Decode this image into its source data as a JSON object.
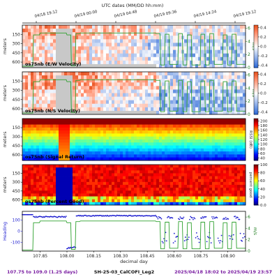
{
  "header": {
    "utc_title": "UTC dates (MM/DD hh:mm)",
    "top_ticks": [
      "04/18 19:12",
      "04/19 00:00",
      "04/19 04:48",
      "04/19 09:36",
      "04/19 14:24",
      "04/19 19:12"
    ]
  },
  "colors": {
    "speed_line": "#2ca02c",
    "heading_dots": "#1f1fd0",
    "footer_purple": "#7b1fa2",
    "mask_gray": "#c8c8c8"
  },
  "chart_data": [
    {
      "type": "heatmap",
      "panel_label": "os75nb (E/W Velocity)",
      "ylabel": "meters",
      "yticks": [
        150,
        300,
        450,
        600
      ],
      "right_label": "m/s",
      "right_ticks": [
        0,
        2,
        4,
        6
      ],
      "colorbar_ticks": [
        -0.4,
        -0.2,
        0.0,
        0.2,
        0.4
      ],
      "colormap": "diverging red-white-blue",
      "speed_series": [
        0,
        5.4,
        5.4,
        5.4,
        0,
        5.4,
        5.4,
        5.4,
        5.4,
        5.4,
        5.4,
        5.4,
        5.4,
        5.4,
        5.4,
        5.4,
        5.4,
        5.4,
        5.4,
        0.5,
        5.2,
        0.5,
        5.2,
        0.5,
        5.2,
        0.5,
        5.2,
        0.5,
        5.2,
        0.5,
        5.2,
        0.5
      ]
    },
    {
      "type": "heatmap",
      "panel_label": "os75nb (N/S Velocity)",
      "ylabel": "meters",
      "yticks": [
        150,
        300,
        450,
        600
      ],
      "right_label": "m/s",
      "right_ticks": [
        0,
        2,
        4,
        6
      ],
      "colorbar_ticks": [
        -0.4,
        -0.2,
        0.0,
        0.2,
        0.4
      ],
      "colormap": "diverging red-white-blue"
    },
    {
      "type": "heatmap",
      "panel_label": "os75nb (Signal Return)",
      "ylabel": "meters",
      "yticks": [
        150,
        300,
        450,
        600
      ],
      "right_label": "RSSI (dB)",
      "colorbar_ticks": [
        40,
        60,
        80,
        100,
        120,
        140,
        160,
        180,
        200
      ],
      "colormap": "jet"
    },
    {
      "type": "heatmap",
      "panel_label": "os75nb (Percent Good)",
      "ylabel": "meters",
      "yticks": [
        150,
        300,
        450,
        600
      ],
      "right_label": "percent good",
      "colorbar_ticks": [
        0,
        20,
        40,
        60,
        80,
        100
      ],
      "colormap": "jet"
    },
    {
      "type": "line",
      "left_label": "Heading",
      "left_ticks": [
        -100,
        0,
        100
      ],
      "right_label": "m/s",
      "right_ticks": [
        0,
        2,
        4,
        6
      ],
      "xlabel": "decimal day",
      "x_ticks": [
        "107.85",
        "108.00",
        "108.15",
        "108.30",
        "108.45",
        "108.60",
        "108.75",
        "108.90"
      ],
      "xlim": [
        107.75,
        109.0
      ]
    }
  ],
  "footer": {
    "range": "107.75 to 109.0 (1.25 days)",
    "cruise": "SH-25-03_CalCOFI_Leg2",
    "dates": "2025/04/18 18:02 to 2025/04/19 23:57"
  }
}
